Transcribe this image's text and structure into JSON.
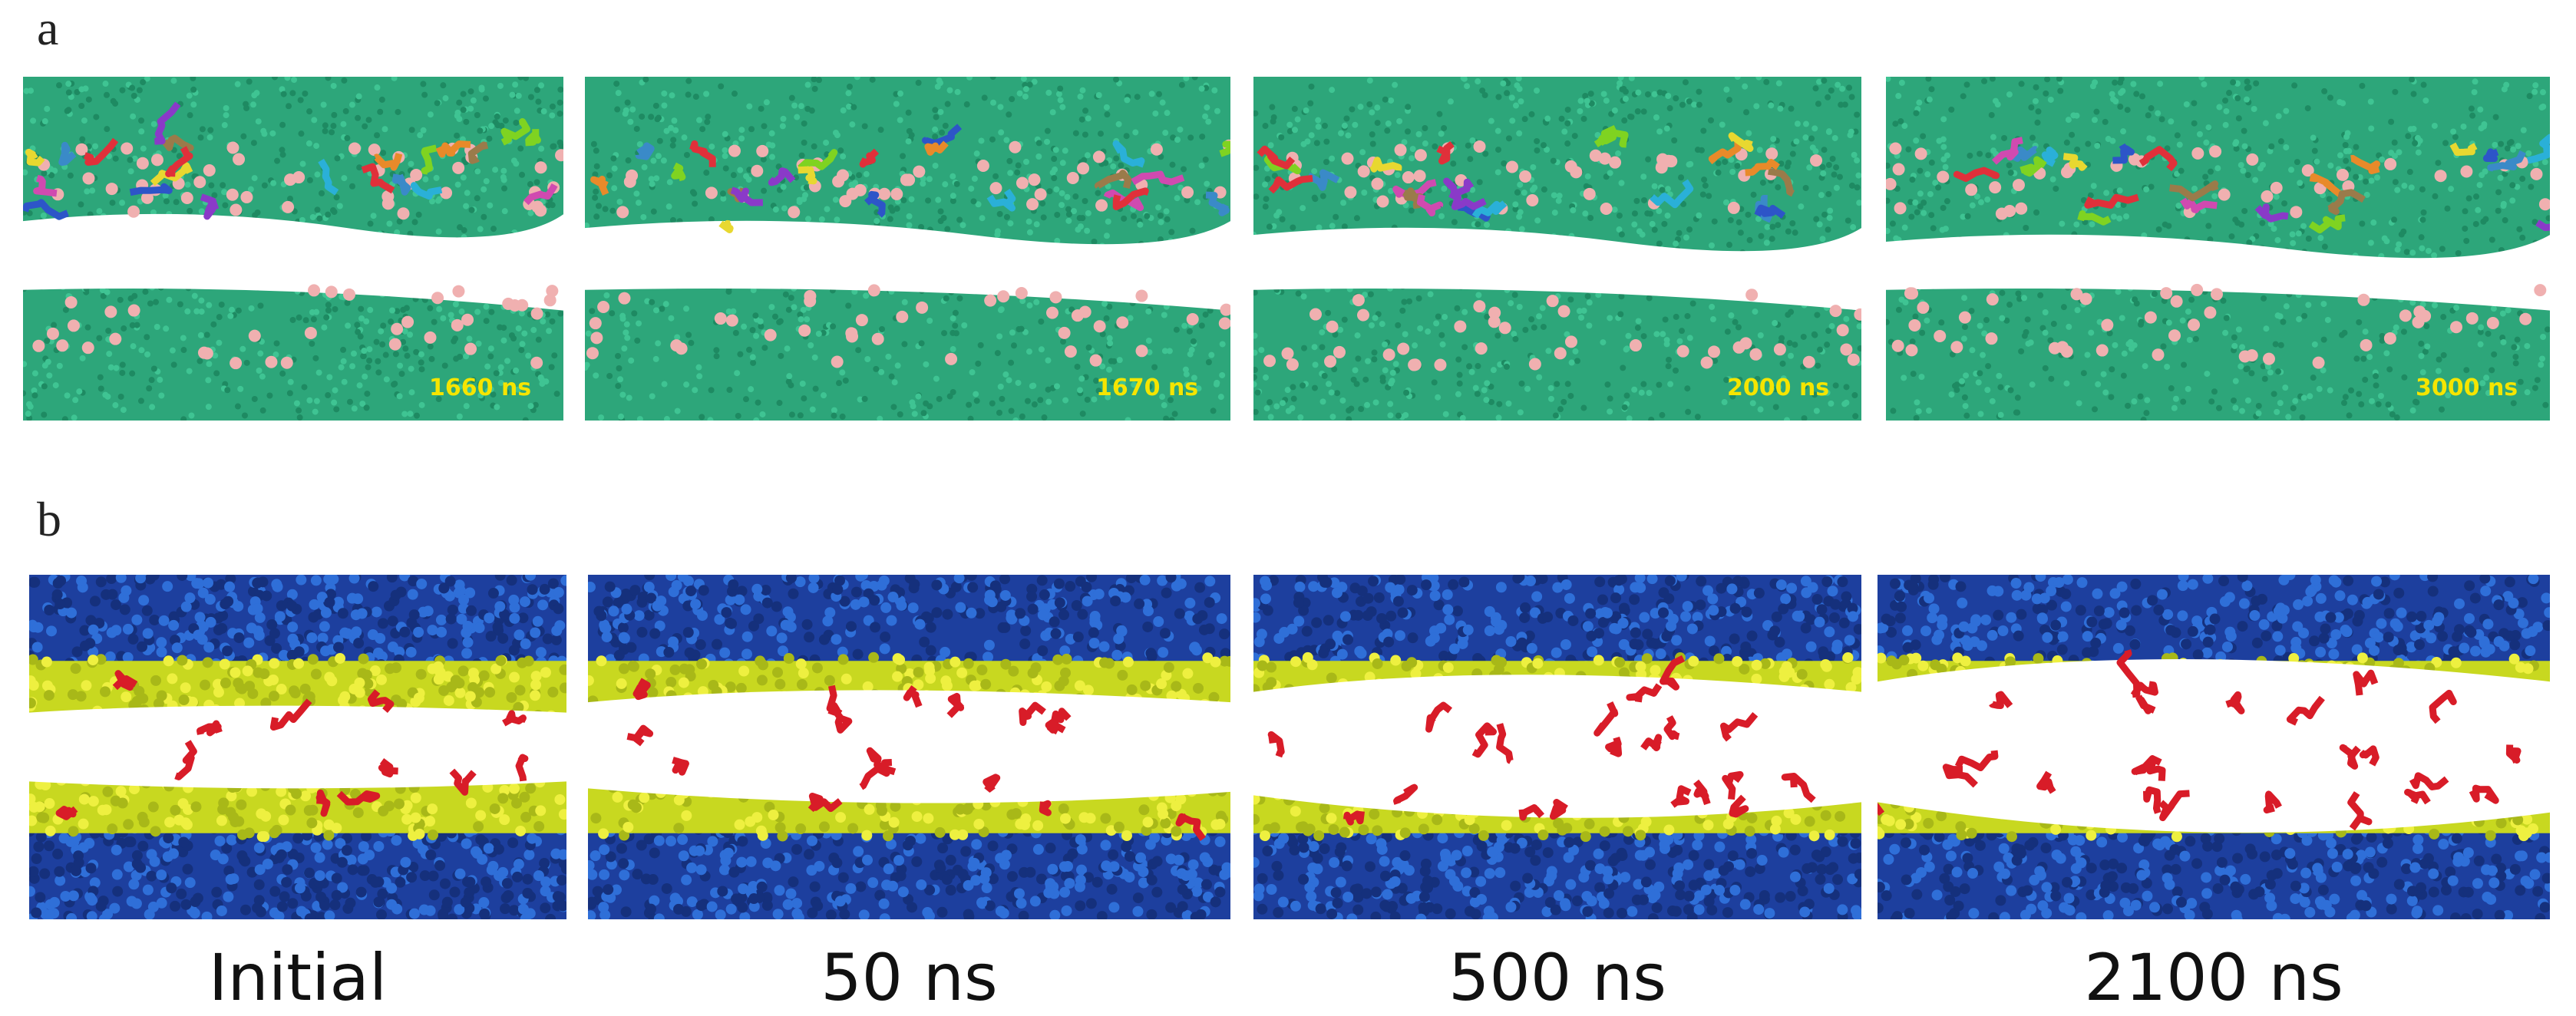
{
  "panel_a": {
    "label": "a",
    "frames": [
      {
        "time": "1660 ns"
      },
      {
        "time": "1670 ns"
      },
      {
        "time": "2000 ns"
      },
      {
        "time": "3000 ns"
      }
    ]
  },
  "panel_b": {
    "label": "b",
    "frames": [
      {
        "caption": "Initial"
      },
      {
        "caption": "50 ns"
      },
      {
        "caption": "500 ns"
      },
      {
        "caption": "2100 ns"
      }
    ]
  }
}
